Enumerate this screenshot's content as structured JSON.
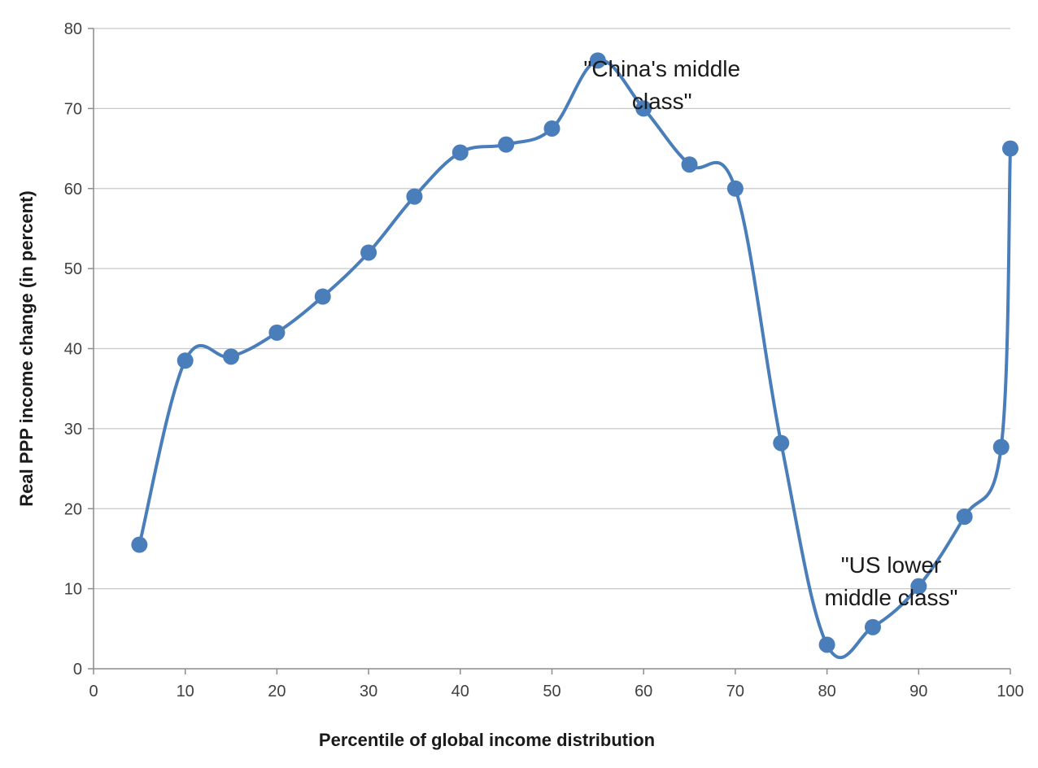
{
  "chart_data": {
    "type": "line",
    "title": "",
    "xlabel": "Percentile of  global income distribution",
    "ylabel": "Real PPP income change (in percent)",
    "xlim": [
      0,
      100
    ],
    "ylim": [
      0,
      80
    ],
    "x_ticks": [
      "0",
      "10",
      "20",
      "30",
      "40",
      "50",
      "60",
      "70",
      "80",
      "90",
      "100"
    ],
    "y_ticks": [
      "0",
      "10",
      "20",
      "30",
      "40",
      "50",
      "60",
      "70",
      "80"
    ],
    "grid": true,
    "legend": "none",
    "color": "#4a7ebb",
    "series": [
      {
        "x": [
          5,
          10,
          15,
          20,
          25,
          30,
          35,
          40,
          45,
          50,
          55,
          60,
          65,
          70,
          75,
          80,
          85,
          90,
          95,
          99,
          100
        ],
        "y": [
          15.5,
          38.5,
          39,
          42,
          46.5,
          52,
          59,
          64.5,
          65.5,
          67.5,
          76,
          70,
          63,
          60,
          28.2,
          3,
          5.2,
          10.3,
          19,
          27.7,
          65
        ]
      }
    ],
    "annotations": [
      {
        "lines": [
          "\"China's middle",
          "class\""
        ],
        "x": 62,
        "y": 74
      },
      {
        "lines": [
          "\"US lower",
          "middle class\""
        ],
        "x": 87,
        "y": 12
      }
    ]
  }
}
